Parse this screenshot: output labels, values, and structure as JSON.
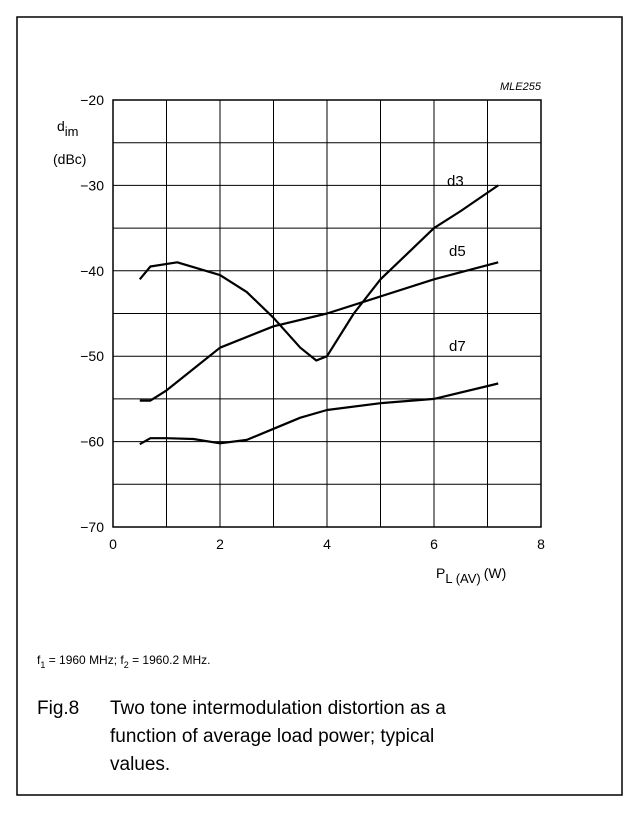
{
  "chart_data": {
    "type": "line",
    "tag": "MLE255",
    "ylabel_main": "d",
    "ylabel_sub": "im",
    "ylabel_unit": "(dBc)",
    "xlabel_main": "P",
    "xlabel_sub": "L (AV)",
    "xlabel_unit": "(W)",
    "xlim": [
      0,
      8
    ],
    "xticks": [
      0,
      2,
      4,
      6,
      8
    ],
    "xgrid": [
      1,
      3,
      5,
      7
    ],
    "ylim": [
      -70,
      -20
    ],
    "yticks": [
      {
        "value": -70,
        "label": "−70"
      },
      {
        "value": -60,
        "label": "−60"
      },
      {
        "value": -50,
        "label": "−50"
      },
      {
        "value": -40,
        "label": "−40"
      },
      {
        "value": -30,
        "label": "−30"
      },
      {
        "value": -20,
        "label": "−20"
      }
    ],
    "ygrid": [
      -65,
      -55,
      -45,
      -35,
      -25
    ],
    "grid": true,
    "series": [
      {
        "name": "d3",
        "color": "#000000",
        "x": [
          0.5,
          0.7,
          1.2,
          2,
          2.5,
          3,
          3.5,
          3.8,
          4,
          4.5,
          5,
          5.5,
          6,
          6.5,
          7.2
        ],
        "values": [
          -41,
          -39.5,
          -39,
          -40.5,
          -42.5,
          -45.5,
          -49,
          -50.5,
          -50,
          -45,
          -41,
          -38,
          -35,
          -33,
          -30
        ]
      },
      {
        "name": "d5",
        "color": "#000000",
        "x": [
          0.5,
          0.7,
          1,
          1.5,
          2,
          3,
          4,
          5,
          6,
          7.2
        ],
        "values": [
          -55.2,
          -55.2,
          -54,
          -51.5,
          -49,
          -46.5,
          -45,
          -43,
          -41,
          -39
        ]
      },
      {
        "name": "d7",
        "color": "#000000",
        "x": [
          0.5,
          0.7,
          1,
          1.5,
          2,
          2.5,
          3,
          3.5,
          4,
          5,
          6,
          7.2
        ],
        "values": [
          -60.3,
          -59.6,
          -59.6,
          -59.7,
          -60.2,
          -59.8,
          -58.5,
          -57.2,
          -56.3,
          -55.5,
          -55,
          -53.2
        ]
      }
    ]
  },
  "footnote": [
    "f",
    "1",
    " = 1960 MHz; f",
    "2",
    " = 1960.2 MHz."
  ],
  "caption": {
    "label": "Fig.8",
    "lines": [
      "Two tone intermodulation distortion as a",
      "function of average load power; typical",
      "values."
    ]
  }
}
